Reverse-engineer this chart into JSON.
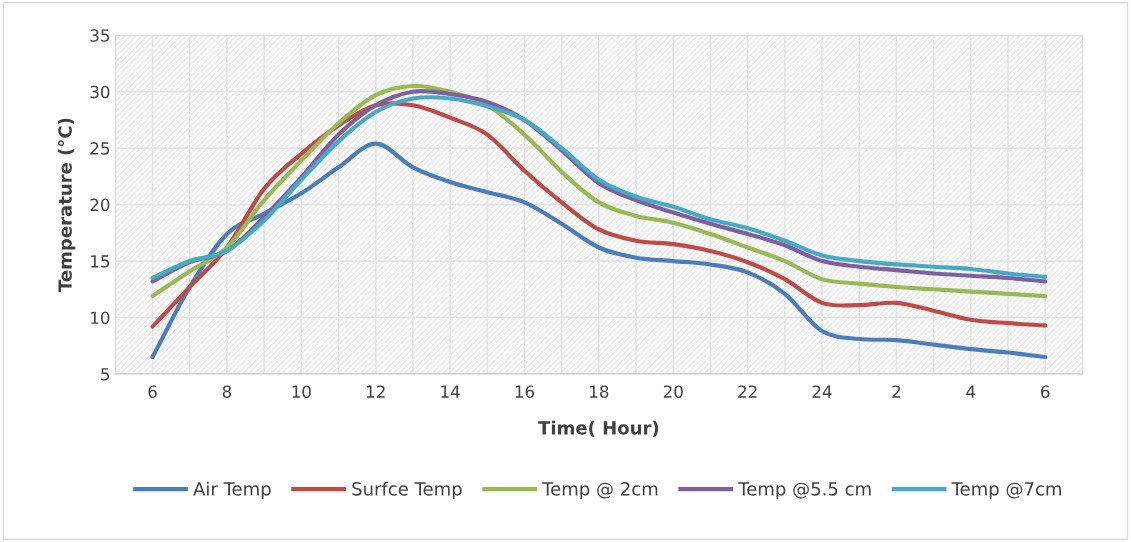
{
  "chart_data": {
    "type": "line",
    "xlabel": "Time( Hour)",
    "ylabel": "Temperature (°C)",
    "categories": [
      "6",
      null,
      "8",
      null,
      "10",
      null,
      "12",
      null,
      "14",
      null,
      "16",
      null,
      "18",
      null,
      "20",
      null,
      "22",
      null,
      "24",
      null,
      "2",
      null,
      "4",
      null,
      "6"
    ],
    "ylim": [
      5,
      35
    ],
    "yticks": [
      5,
      10,
      15,
      20,
      25,
      30,
      35
    ],
    "grid": true,
    "legend": "bottom",
    "marker": "none",
    "line_style": "solid",
    "series": [
      {
        "name": "Air Temp",
        "color": "#4a7ebb",
        "values": [
          6.5,
          12.7,
          17.4,
          19.2,
          21.0,
          23.3,
          25.4,
          23.3,
          22.0,
          21.1,
          20.2,
          18.3,
          16.2,
          15.3,
          15.0,
          14.7,
          14.0,
          12.1,
          8.8,
          8.1,
          8.0,
          7.6,
          7.2,
          6.9,
          6.5
        ]
      },
      {
        "name": "Surfce Temp",
        "color": "#be4b48",
        "values": [
          9.2,
          12.7,
          16.2,
          21.4,
          24.5,
          27.0,
          28.8,
          28.8,
          27.7,
          26.2,
          23.0,
          20.2,
          17.8,
          16.8,
          16.5,
          15.9,
          14.9,
          13.4,
          11.3,
          11.1,
          11.3,
          10.6,
          9.8,
          9.5,
          9.3
        ]
      },
      {
        "name": "Temp @ 2cm",
        "color": "#98b954",
        "values": [
          11.9,
          14.1,
          16.2,
          20.4,
          23.9,
          27.2,
          29.7,
          30.5,
          30.0,
          28.8,
          26.2,
          22.9,
          20.2,
          19.0,
          18.4,
          17.4,
          16.2,
          15.0,
          13.4,
          13.0,
          12.7,
          12.5,
          12.3,
          12.1,
          11.9
        ]
      },
      {
        "name": "Temp @5.5 cm",
        "color": "#7d60a0",
        "values": [
          13.2,
          14.9,
          15.9,
          18.9,
          22.4,
          26.2,
          28.8,
          30.0,
          29.8,
          29.1,
          27.5,
          24.8,
          21.9,
          20.4,
          19.3,
          18.3,
          17.4,
          16.4,
          15.0,
          14.5,
          14.2,
          13.9,
          13.7,
          13.5,
          13.2
        ]
      },
      {
        "name": "Temp @7cm",
        "color": "#46aac5",
        "values": [
          13.5,
          15.0,
          15.9,
          18.6,
          22.2,
          25.6,
          28.2,
          29.4,
          29.4,
          28.7,
          27.5,
          25.0,
          22.2,
          20.7,
          19.8,
          18.7,
          17.9,
          16.8,
          15.5,
          15.0,
          14.7,
          14.5,
          14.3,
          13.9,
          13.6
        ]
      }
    ]
  }
}
